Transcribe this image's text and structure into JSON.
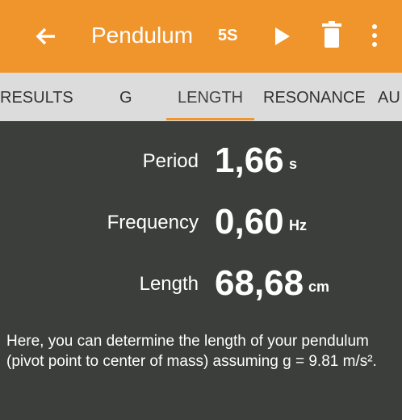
{
  "app_bar": {
    "title": "Pendulum",
    "timer": "5S"
  },
  "tabs": [
    "RESULTS",
    "G",
    "LENGTH",
    "RESONANCE",
    "AU"
  ],
  "active_tab": "LENGTH",
  "results": [
    {
      "label": "Period",
      "value": "1,66",
      "unit": "s"
    },
    {
      "label": "Frequency",
      "value": "0,60",
      "unit": "Hz"
    },
    {
      "label": "Length",
      "value": "68,68",
      "unit": "cm"
    }
  ],
  "description": "Here, you can determine the length of your pendulum (pivot point to center of mass) assuming g = 9.81 m/s²."
}
